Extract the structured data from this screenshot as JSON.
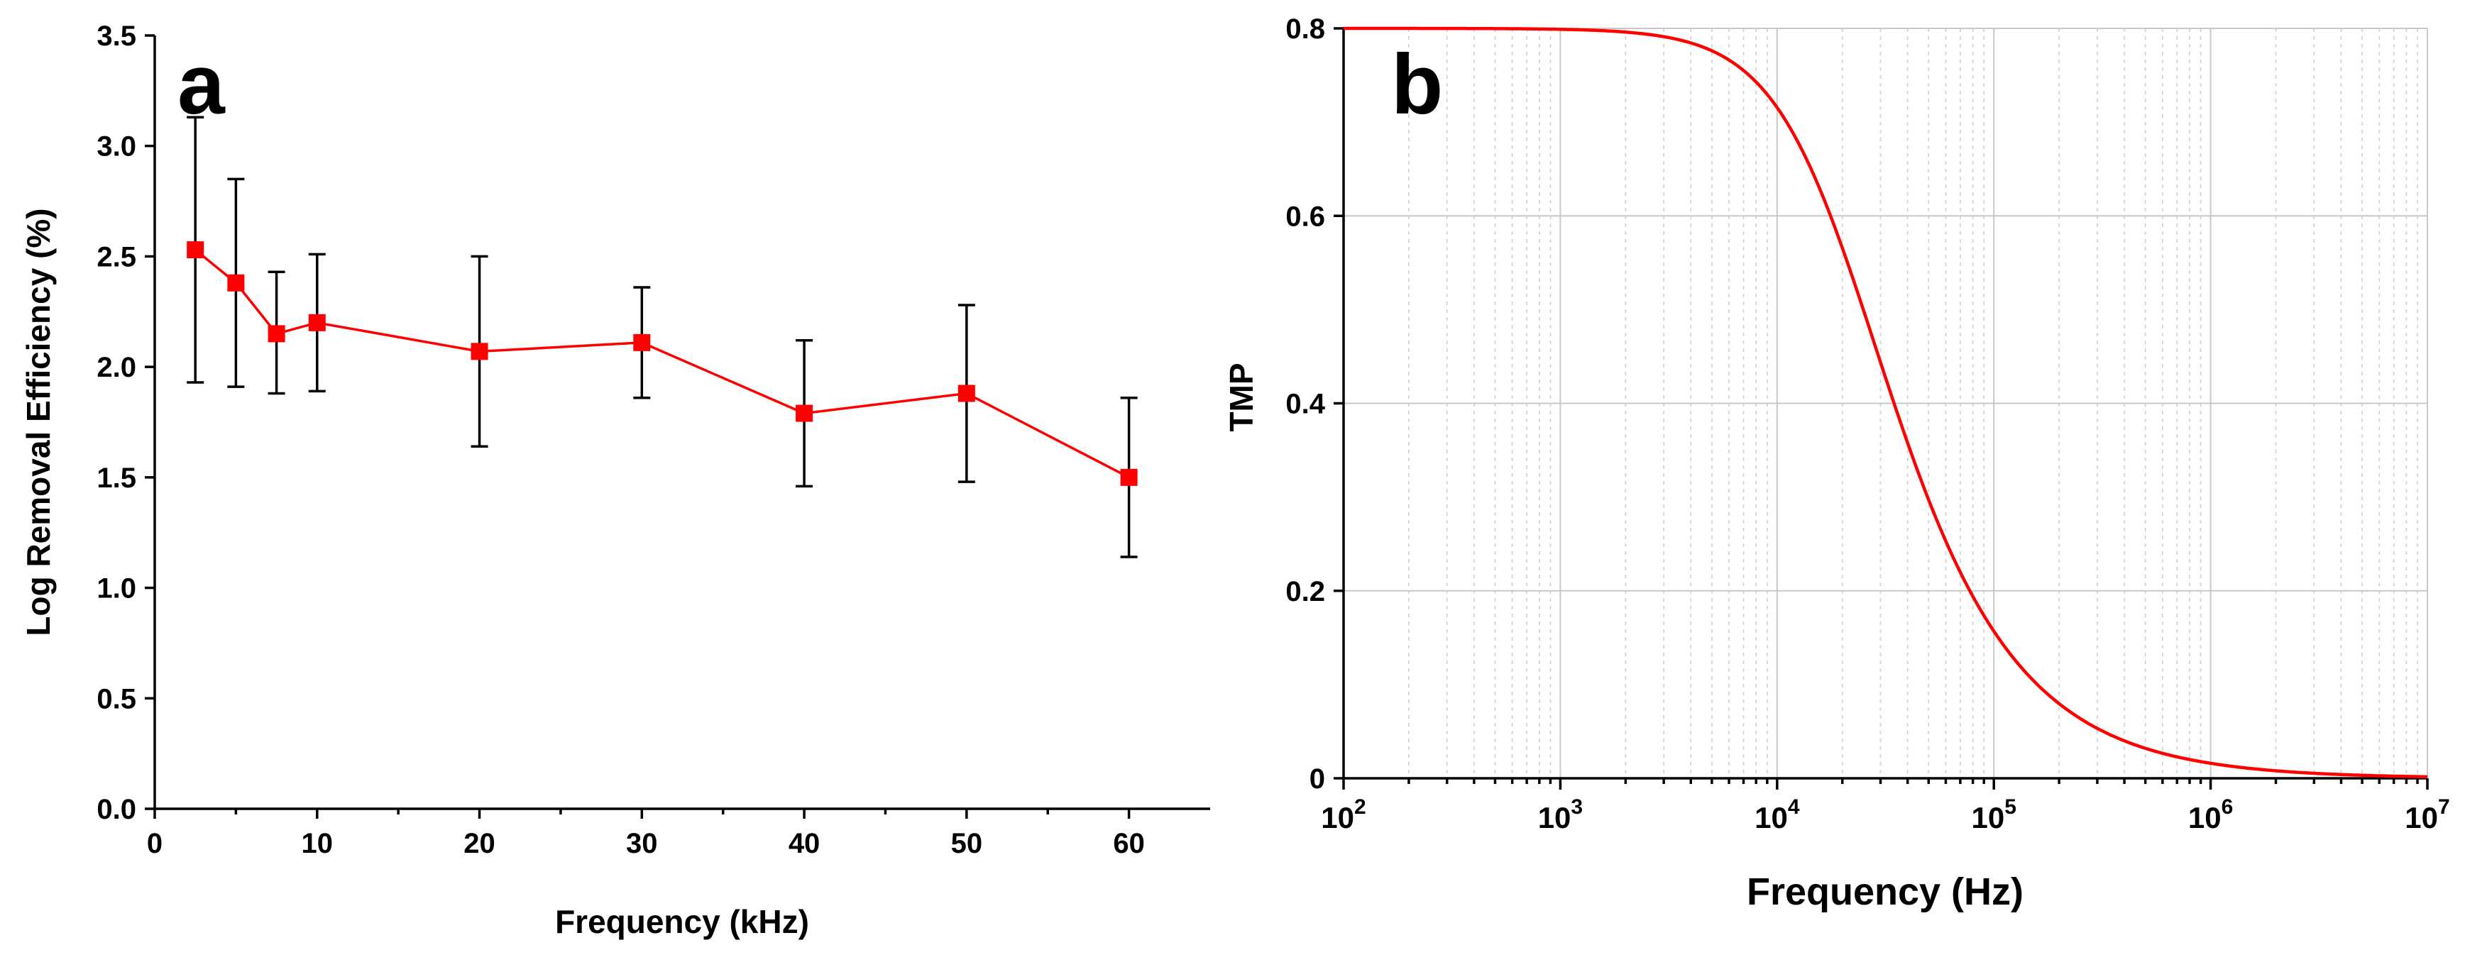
{
  "colors": {
    "series": "#ff0000",
    "axis": "#000000",
    "grid": "#c8c8c8"
  },
  "chart_data": [
    {
      "type": "line",
      "panel_label": "a",
      "title": "",
      "xlabel": "Frequency (kHz)",
      "ylabel": "Log Removal Efficiency (%)",
      "xlim": [
        0,
        65
      ],
      "ylim": [
        0,
        3.5
      ],
      "xticks": [
        0,
        10,
        20,
        30,
        40,
        50,
        60
      ],
      "xtick_labels": [
        "0",
        "10",
        "20",
        "30",
        "40",
        "50",
        "60"
      ],
      "yticks": [
        0,
        0.5,
        1,
        1.5,
        2,
        2.5,
        3,
        3.5
      ],
      "ytick_labels": [
        "0.0",
        "0.5",
        "1.0",
        "1.5",
        "2.0",
        "2.5",
        "3.0",
        "3.5"
      ],
      "grid": false,
      "marker": "square",
      "x": [
        2.5,
        5,
        7.5,
        10,
        20,
        30,
        40,
        50,
        60
      ],
      "y": [
        2.53,
        2.38,
        2.15,
        2.2,
        2.07,
        2.11,
        1.79,
        1.88,
        1.5
      ],
      "err_low": [
        1.93,
        1.91,
        1.88,
        1.89,
        1.64,
        1.86,
        1.46,
        1.48,
        1.14
      ],
      "err_high": [
        3.13,
        2.85,
        2.43,
        2.51,
        2.5,
        2.36,
        2.12,
        2.28,
        1.86
      ]
    },
    {
      "type": "line",
      "panel_label": "b",
      "title": "",
      "xlabel": "Frequency (Hz)",
      "ylabel": "TMP",
      "xscale": "log",
      "xlim": [
        100,
        10000000
      ],
      "ylim": [
        0,
        0.8
      ],
      "xtick_exponents": [
        "2",
        "3",
        "4",
        "5",
        "6",
        "7"
      ],
      "xtick_base": "10",
      "yticks": [
        0,
        0.2,
        0.4,
        0.6,
        0.8
      ],
      "ytick_labels": [
        "0",
        "0.2",
        "0.4",
        "0.6",
        "0.8"
      ],
      "grid": true,
      "model": {
        "amplitude": 0.8,
        "corner_frequency_hz": 20000,
        "form": "lowpass"
      },
      "x": [
        100,
        1000,
        3000,
        5000,
        10000,
        20000,
        30000,
        50000,
        100000,
        200000,
        1000000,
        10000000
      ],
      "y": [
        0.8,
        0.799,
        0.792,
        0.776,
        0.716,
        0.566,
        0.444,
        0.297,
        0.154,
        0.078,
        0.016,
        0.002
      ]
    }
  ]
}
